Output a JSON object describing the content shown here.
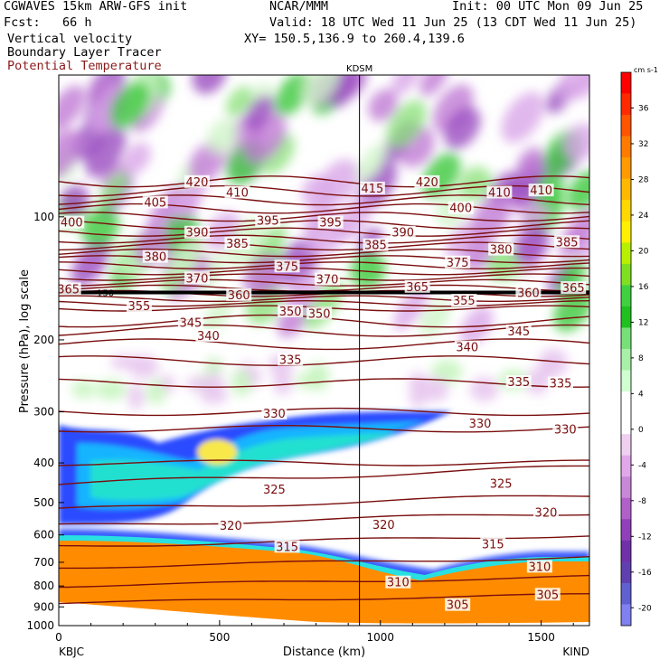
{
  "header": {
    "model": "CGWAVES 15km ARW-GFS init",
    "org": "NCAR/MMM",
    "init": "Init: 00 UTC Mon 09 Jun 25",
    "fcst": "Fcst:   66 h",
    "valid": "Valid: 18 UTC Wed 11 Jun 25 (13 CDT Wed 11 Jun 25)",
    "field1": "Vertical velocity",
    "xy": "XY= 150.5,136.9 to 260.4,139.6",
    "field2": "Boundary Layer Tracer",
    "field3": "Potential Temperature",
    "field3_color": "#8b1a1a"
  },
  "chart_data": {
    "type": "heatmap",
    "xlabel": "Distance (km)",
    "ylabel": "Pressure (hPa), log scale",
    "xlim": [
      0,
      1650
    ],
    "ylim": [
      1000,
      45
    ],
    "xticks": [
      "0",
      "500",
      "1000",
      "1500"
    ],
    "xtick_values": [
      0,
      500,
      1000,
      1500
    ],
    "yticks": [
      "100",
      "200",
      "300",
      "400",
      "500",
      "600",
      "700",
      "800",
      "900",
      "1000"
    ],
    "ytick_values": [
      100,
      200,
      300,
      400,
      500,
      600,
      700,
      800,
      900,
      1000
    ],
    "left_station": "KBJC",
    "right_station": "KIND",
    "marker_station": "KDSM",
    "marker_x": 935,
    "tropopause_label": "150",
    "colorbar": {
      "unit": "cm s-1",
      "labels": [
        "36",
        "32",
        "28",
        "24",
        "20",
        "16",
        "12",
        "8",
        "4",
        "0",
        "-4",
        "-8",
        "-12",
        "-16",
        "-20"
      ],
      "label_values": [
        36,
        32,
        28,
        24,
        20,
        16,
        12,
        8,
        4,
        0,
        -4,
        -8,
        -12,
        -16,
        -20
      ],
      "colors": [
        "#ff0000",
        "#ff2a00",
        "#ff5400",
        "#ff7b00",
        "#ff9a00",
        "#ffb800",
        "#ffd800",
        "#fff000",
        "#b8f000",
        "#7ee020",
        "#40d040",
        "#20c020",
        "#78e078",
        "#a8f0a8",
        "#d0ffd0",
        "#ffffff",
        "#ffffff",
        "#f0d0f0",
        "#e0a8e8",
        "#c888d8",
        "#b060c8",
        "#9040b8",
        "#7030a8",
        "#6040b0",
        "#6060d0",
        "#8080f0"
      ],
      "range": [
        -22,
        40
      ]
    },
    "theta_labels": [
      {
        "text": "420",
        "x": 430,
        "p": 82
      },
      {
        "text": "420",
        "x": 1145,
        "p": 82
      },
      {
        "text": "410",
        "x": 555,
        "p": 87
      },
      {
        "text": "415",
        "x": 975,
        "p": 85
      },
      {
        "text": "410",
        "x": 1370,
        "p": 87
      },
      {
        "text": "410",
        "x": 1500,
        "p": 86
      },
      {
        "text": "405",
        "x": 300,
        "p": 92
      },
      {
        "text": "400",
        "x": 40,
        "p": 103
      },
      {
        "text": "400",
        "x": 1250,
        "p": 95
      },
      {
        "text": "390",
        "x": 430,
        "p": 109
      },
      {
        "text": "395",
        "x": 650,
        "p": 102
      },
      {
        "text": "395",
        "x": 845,
        "p": 103
      },
      {
        "text": "390",
        "x": 1070,
        "p": 109
      },
      {
        "text": "385",
        "x": 555,
        "p": 116
      },
      {
        "text": "385",
        "x": 985,
        "p": 117
      },
      {
        "text": "385",
        "x": 1580,
        "p": 115
      },
      {
        "text": "380",
        "x": 300,
        "p": 125
      },
      {
        "text": "380",
        "x": 1375,
        "p": 120
      },
      {
        "text": "375",
        "x": 710,
        "p": 132
      },
      {
        "text": "375",
        "x": 1240,
        "p": 129
      },
      {
        "text": "370",
        "x": 430,
        "p": 141
      },
      {
        "text": "370",
        "x": 835,
        "p": 142
      },
      {
        "text": "365",
        "x": 30,
        "p": 150
      },
      {
        "text": "365",
        "x": 1115,
        "p": 148
      },
      {
        "text": "365",
        "x": 1600,
        "p": 149
      },
      {
        "text": "360",
        "x": 560,
        "p": 155
      },
      {
        "text": "360",
        "x": 1460,
        "p": 153
      },
      {
        "text": "355",
        "x": 250,
        "p": 165
      },
      {
        "text": "355",
        "x": 1260,
        "p": 160
      },
      {
        "text": "350",
        "x": 720,
        "p": 170
      },
      {
        "text": "350",
        "x": 810,
        "p": 172
      },
      {
        "text": "345",
        "x": 410,
        "p": 181
      },
      {
        "text": "345",
        "x": 1430,
        "p": 190
      },
      {
        "text": "340",
        "x": 465,
        "p": 195
      },
      {
        "text": "340",
        "x": 1270,
        "p": 208
      },
      {
        "text": "335",
        "x": 720,
        "p": 223
      },
      {
        "text": "335",
        "x": 1430,
        "p": 253
      },
      {
        "text": "335",
        "x": 1560,
        "p": 255
      },
      {
        "text": "330",
        "x": 670,
        "p": 302
      },
      {
        "text": "330",
        "x": 1310,
        "p": 320
      },
      {
        "text": "330",
        "x": 1575,
        "p": 330
      },
      {
        "text": "325",
        "x": 670,
        "p": 463
      },
      {
        "text": "325",
        "x": 1375,
        "p": 448
      },
      {
        "text": "320",
        "x": 535,
        "p": 568
      },
      {
        "text": "320",
        "x": 1010,
        "p": 566
      },
      {
        "text": "320",
        "x": 1515,
        "p": 528
      },
      {
        "text": "315",
        "x": 710,
        "p": 640
      },
      {
        "text": "315",
        "x": 1350,
        "p": 630
      },
      {
        "text": "310",
        "x": 1055,
        "p": 782
      },
      {
        "text": "310",
        "x": 1495,
        "p": 716
      },
      {
        "text": "305",
        "x": 1240,
        "p": 888
      },
      {
        "text": "305",
        "x": 1520,
        "p": 838
      }
    ],
    "grid": false
  }
}
